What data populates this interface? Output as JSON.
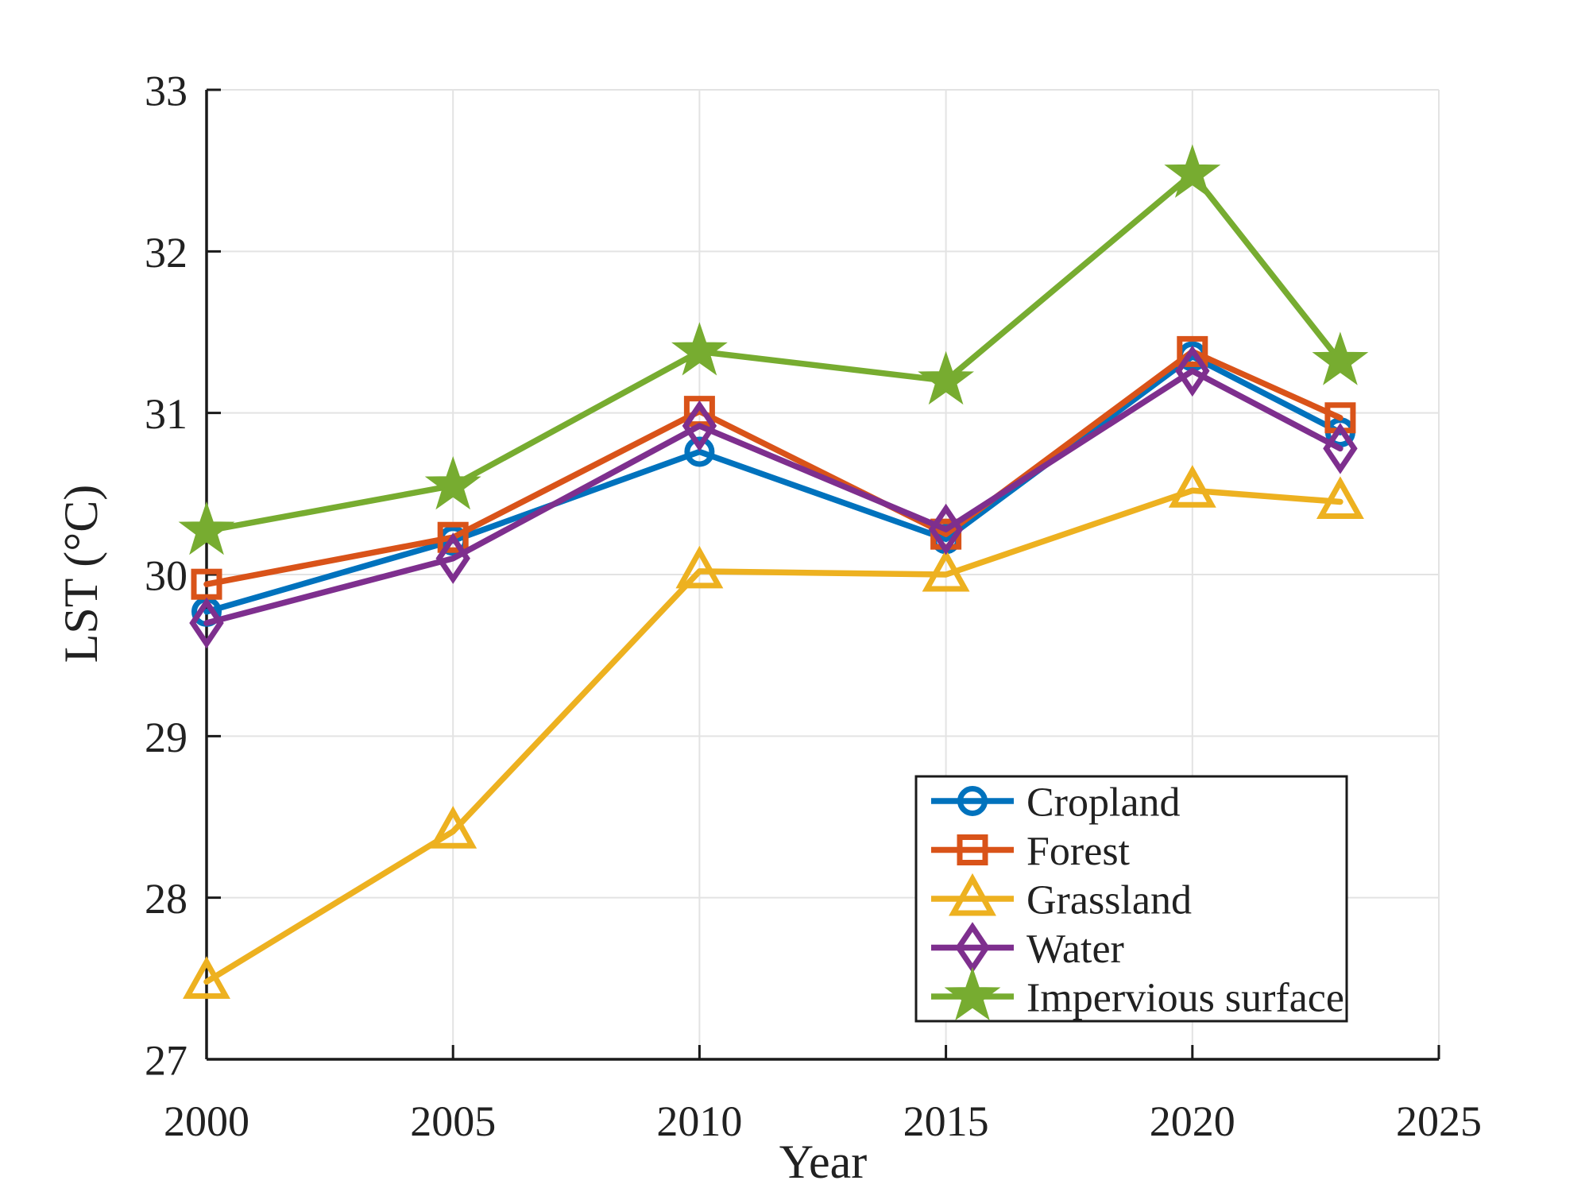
{
  "chart_data": {
    "type": "line",
    "title": "",
    "xlabel": "Year",
    "ylabel": "LST (°C)",
    "xlim": [
      2000,
      2025
    ],
    "ylim": [
      27,
      33
    ],
    "xticks": [
      2000,
      2005,
      2010,
      2015,
      2020,
      2025
    ],
    "yticks": [
      27,
      28,
      29,
      30,
      31,
      32,
      33
    ],
    "grid": true,
    "legend_position": "inside-bottom-right",
    "x": [
      2000,
      2005,
      2010,
      2015,
      2020,
      2023
    ],
    "series": [
      {
        "name": "Cropland",
        "color": "#0072BD",
        "marker": "circle",
        "values": [
          29.77,
          30.21,
          30.76,
          30.22,
          31.35,
          30.88
        ]
      },
      {
        "name": "Forest",
        "color": "#D95319",
        "marker": "square",
        "values": [
          29.94,
          30.23,
          31.01,
          30.25,
          31.38,
          30.97
        ]
      },
      {
        "name": "Grassland",
        "color": "#EDB120",
        "marker": "triangle",
        "values": [
          27.48,
          28.41,
          30.02,
          30.0,
          30.52,
          30.45
        ]
      },
      {
        "name": "Water",
        "color": "#7E2F8E",
        "marker": "diamond",
        "values": [
          29.7,
          30.1,
          30.92,
          30.28,
          31.26,
          30.78
        ]
      },
      {
        "name": "Impervious surface",
        "color": "#77AC30",
        "marker": "star",
        "values": [
          30.27,
          30.55,
          31.38,
          31.2,
          32.48,
          31.32
        ]
      }
    ],
    "colors": {
      "axis": "#1a1a1a",
      "grid": "#e3e3e3",
      "text": "#212121",
      "legend_border": "#1a1a1a",
      "background": "#ffffff"
    }
  }
}
